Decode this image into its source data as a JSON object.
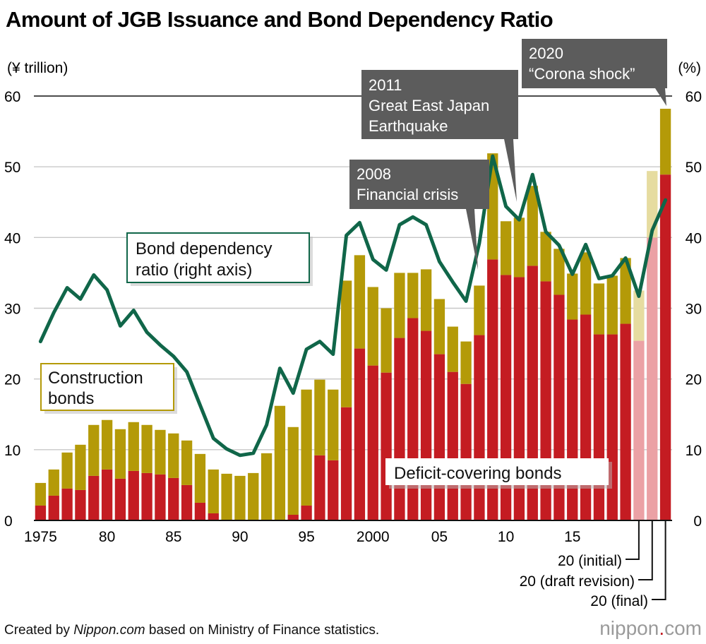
{
  "chart_data": {
    "type": "bar",
    "title": "Amount of JGB Issuance and Bond Dependency Ratio",
    "left_unit": "(¥ trillion)",
    "right_unit": "(%)",
    "ylim": [
      0,
      60
    ],
    "ylim_right": [
      0,
      60
    ],
    "y_ticks": [
      "0",
      "10",
      "20",
      "30",
      "40",
      "50",
      "60"
    ],
    "y_ticks_right": [
      "0",
      "10",
      "20",
      "30",
      "40",
      "50",
      "60"
    ],
    "x_tick_labels": [
      {
        "label": "1975",
        "index": 0
      },
      {
        "label": "80",
        "index": 5
      },
      {
        "label": "85",
        "index": 10
      },
      {
        "label": "90",
        "index": 15
      },
      {
        "label": "95",
        "index": 20
      },
      {
        "label": "2000",
        "index": 25
      },
      {
        "label": "05",
        "index": 30
      },
      {
        "label": "10",
        "index": 35
      },
      {
        "label": "15",
        "index": 40
      }
    ],
    "categories": [
      "1975",
      "1976",
      "1977",
      "1978",
      "1979",
      "1980",
      "1981",
      "1982",
      "1983",
      "1984",
      "1985",
      "1986",
      "1987",
      "1988",
      "1989",
      "1990",
      "1991",
      "1992",
      "1993",
      "1994",
      "1995",
      "1996",
      "1997",
      "1998",
      "1999",
      "2000",
      "2001",
      "2002",
      "2003",
      "2004",
      "2005",
      "2006",
      "2007",
      "2008",
      "2009",
      "2010",
      "2011",
      "2012",
      "2013",
      "2014",
      "2015",
      "2016",
      "2017",
      "2018",
      "2019",
      "2020 (initial)",
      "2020 (draft revision)",
      "2020 (final)"
    ],
    "series": [
      {
        "name": "Deficit-covering bonds",
        "color": "#c41c22",
        "values": [
          2.1,
          3.5,
          4.5,
          4.3,
          6.3,
          7.2,
          5.9,
          7.0,
          6.7,
          6.5,
          6.0,
          5.0,
          2.5,
          1.0,
          0.0,
          0.0,
          0.0,
          0.0,
          0.0,
          0.8,
          2.1,
          9.2,
          8.5,
          16.0,
          24.3,
          21.9,
          20.9,
          25.8,
          28.6,
          26.8,
          23.5,
          21.0,
          19.3,
          26.2,
          36.9,
          34.7,
          34.4,
          36.0,
          33.8,
          31.9,
          28.4,
          29.1,
          26.3,
          26.3,
          27.8,
          25.4,
          40.0,
          48.9
        ]
      },
      {
        "name": "Construction bonds",
        "color": "#b49a08",
        "values": [
          3.2,
          3.7,
          5.1,
          6.4,
          7.2,
          7.0,
          7.0,
          6.9,
          6.8,
          6.3,
          6.3,
          6.3,
          6.9,
          6.2,
          6.6,
          6.3,
          6.7,
          9.5,
          16.2,
          12.4,
          16.4,
          10.7,
          10.0,
          17.9,
          13.2,
          11.1,
          9.1,
          9.2,
          6.4,
          8.7,
          7.8,
          6.4,
          6.0,
          7.0,
          15.0,
          7.6,
          8.4,
          11.3,
          7.0,
          6.5,
          6.5,
          8.8,
          7.2,
          8.3,
          9.3,
          7.1,
          9.4,
          9.3
        ]
      },
      {
        "name": "Bond dependency ratio (right axis)",
        "color": "#106649",
        "axis": "right",
        "values": [
          25.3,
          29.4,
          32.9,
          31.3,
          34.7,
          32.6,
          27.5,
          29.7,
          26.6,
          24.8,
          23.2,
          21.0,
          16.3,
          11.6,
          10.1,
          9.2,
          9.5,
          13.5,
          21.5,
          18.0,
          24.2,
          25.3,
          23.5,
          40.3,
          42.1,
          36.9,
          35.4,
          41.8,
          42.9,
          41.8,
          36.6,
          33.7,
          31.0,
          39.2,
          51.5,
          44.4,
          42.5,
          48.9,
          40.8,
          38.9,
          34.8,
          39.0,
          34.2,
          34.6,
          37.1,
          31.7,
          41.0,
          45.3
        ]
      }
    ],
    "projected_indices": [
      45,
      46
    ],
    "annotations": {
      "ratio_label": [
        "Bond dependency",
        "ratio (right axis)"
      ],
      "construction_label": [
        "Construction",
        "bonds"
      ],
      "deficit_label": "Deficit-covering bonds",
      "event_2008": [
        "2008",
        "Financial crisis"
      ],
      "event_2011": [
        "2011",
        "Great East Japan",
        "Earthquake"
      ],
      "event_2020": [
        "2020",
        "“Corona shock”"
      ],
      "note_initial": "20 (initial)",
      "note_draft": "20 (draft revision)",
      "note_final": "20 (final)"
    },
    "grid": true
  },
  "footer": {
    "source_prefix": "Created by ",
    "source_site": "Nippon.com",
    "source_suffix": " based on Ministry of Finance statistics.",
    "brand_main": "nippon",
    "brand_dot": ".",
    "brand_tail": "com"
  },
  "colors": {
    "deficit": "#c41c22",
    "construction": "#b49a08",
    "deficit_light": "#eba1a5",
    "construction_light": "#e6dca0",
    "ratio_line": "#106649",
    "callout_bg": "#5c5c5c",
    "brand_dot": "#c41c22"
  }
}
